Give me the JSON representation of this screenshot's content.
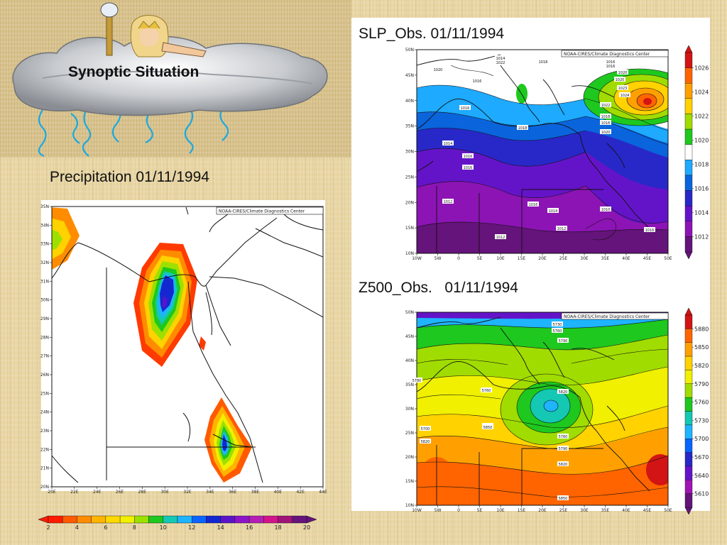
{
  "header": {
    "title": "Synoptic Situation"
  },
  "credit": "NOAA-CIRES/Climate Diagnostics Center",
  "precipitation": {
    "title": "Precipitation 01/11/1994",
    "lat_labels": [
      "35N",
      "34N",
      "33N",
      "32N",
      "31N",
      "30N",
      "29N",
      "28N",
      "27N",
      "26N",
      "25N",
      "24N",
      "23N",
      "22N",
      "21N",
      "20N"
    ],
    "lon_labels": [
      "20E",
      "22E",
      "24E",
      "26E",
      "28E",
      "30E",
      "32E",
      "34E",
      "36E",
      "38E",
      "40E",
      "42E",
      "44E"
    ],
    "colorbar_labels": [
      "2",
      "4",
      "6",
      "8",
      "10",
      "12",
      "14",
      "16",
      "18",
      "20"
    ],
    "colorbar_colors": [
      "#ff1a00",
      "#ff5a00",
      "#ff8c00",
      "#ffb400",
      "#ffd800",
      "#f0f000",
      "#9de000",
      "#1ec81e",
      "#14c8b4",
      "#1eb4ff",
      "#0a64ff",
      "#1428d2",
      "#5a14c8",
      "#8c14c8",
      "#b41eb4",
      "#d2148c",
      "#a0147a",
      "#64147a"
    ]
  },
  "slp": {
    "title": "SLP_Obs. 01/11/1994",
    "lat_labels": [
      "50N",
      "45N",
      "40N",
      "35N",
      "30N",
      "25N",
      "20N",
      "15N",
      "10N"
    ],
    "lon_labels": [
      "10W",
      "5W",
      "0",
      "5E",
      "10E",
      "15E",
      "20E",
      "25E",
      "30E",
      "35E",
      "40E",
      "45E",
      "50E"
    ],
    "colorbar_labels": [
      "1026",
      "1024",
      "1022",
      "1020",
      "1018",
      "1016",
      "1014",
      "1012"
    ],
    "colorbar_colors": [
      "#d21414",
      "#ff6400",
      "#ffa000",
      "#ffd200",
      "#a0dc00",
      "#1ec81e",
      "#ffffff",
      "#1eaaff",
      "#0a64dc",
      "#2828c8",
      "#6414c8",
      "#8c14b4",
      "#64147a"
    ],
    "contour_labels": [
      "1014",
      "1022",
      "1018",
      "1016",
      "1016",
      "1020",
      "1020",
      "1023",
      "1024",
      "1022",
      "1018",
      "1016",
      "1020",
      "1020",
      "1016",
      "1018",
      "1016",
      "1014",
      "1016",
      "1016",
      "1012",
      "1016",
      "1014",
      "1010",
      "1012",
      "1012",
      "1016"
    ]
  },
  "z500": {
    "title": "Z500_Obs.   01/11/1994",
    "lat_labels": [
      "50N",
      "45N",
      "40N",
      "35N",
      "30N",
      "25N",
      "20N",
      "15N",
      "10N"
    ],
    "lon_labels": [
      "10W",
      "5W",
      "0",
      "5E",
      "10E",
      "15E",
      "20E",
      "25E",
      "30E",
      "35E",
      "40E",
      "45E",
      "50E"
    ],
    "colorbar_labels": [
      "5880",
      "5850",
      "5820",
      "5790",
      "5760",
      "5730",
      "5700",
      "5670",
      "5640",
      "5610"
    ],
    "colorbar_colors": [
      "#d21414",
      "#ff6400",
      "#ffa000",
      "#ffd200",
      "#f0f000",
      "#a0dc00",
      "#1ec81e",
      "#14c8b4",
      "#1eb4ff",
      "#0a64ff",
      "#2828c8",
      "#6414c8",
      "#a014b4",
      "#64147a"
    ],
    "contour_labels": [
      "5730",
      "5760",
      "5790",
      "5780",
      "5820",
      "5760",
      "5700",
      "5820",
      "5850",
      "5760",
      "5790",
      "5820",
      "5850",
      "5850"
    ]
  }
}
